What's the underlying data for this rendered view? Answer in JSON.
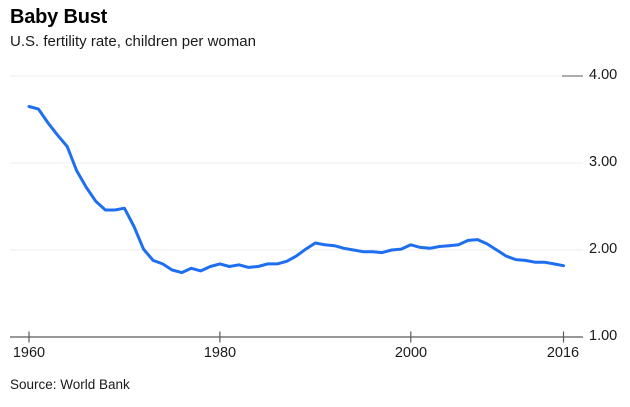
{
  "header": {
    "title": "Baby Bust",
    "subtitle": "U.S. fertility rate, children per woman"
  },
  "footer": {
    "source": "Source: World Bank"
  },
  "colors": {
    "line": "#1e6ef0",
    "grid": "#ececec",
    "axis": "#5a5a5a",
    "text": "#1a1a1a"
  },
  "chart_data": {
    "type": "line",
    "title": "Baby Bust",
    "subtitle": "U.S. fertility rate, children per woman",
    "source": "Source: World Bank",
    "series_name": "U.S. fertility rate, children per woman",
    "x": [
      1960,
      1961,
      1962,
      1963,
      1964,
      1965,
      1966,
      1967,
      1968,
      1969,
      1970,
      1971,
      1972,
      1973,
      1974,
      1975,
      1976,
      1977,
      1978,
      1979,
      1980,
      1981,
      1982,
      1983,
      1984,
      1985,
      1986,
      1987,
      1988,
      1989,
      1990,
      1991,
      1992,
      1993,
      1994,
      1995,
      1996,
      1997,
      1998,
      1999,
      2000,
      2001,
      2002,
      2003,
      2004,
      2005,
      2006,
      2007,
      2008,
      2009,
      2010,
      2011,
      2012,
      2013,
      2014,
      2015,
      2016
    ],
    "values": [
      3.65,
      3.62,
      3.46,
      3.32,
      3.19,
      2.91,
      2.72,
      2.56,
      2.46,
      2.46,
      2.48,
      2.27,
      2.01,
      1.88,
      1.84,
      1.77,
      1.74,
      1.79,
      1.76,
      1.81,
      1.84,
      1.81,
      1.83,
      1.8,
      1.81,
      1.84,
      1.84,
      1.87,
      1.93,
      2.01,
      2.08,
      2.06,
      2.05,
      2.02,
      2.0,
      1.98,
      1.98,
      1.97,
      2.0,
      2.01,
      2.06,
      2.03,
      2.02,
      2.04,
      2.05,
      2.06,
      2.11,
      2.12,
      2.07,
      2.0,
      1.93,
      1.89,
      1.88,
      1.86,
      1.86,
      1.84,
      1.82
    ],
    "xlim": [
      1960,
      2016
    ],
    "ylim": [
      1.0,
      4.0
    ],
    "y_ticks": [
      4.0,
      3.0,
      2.0,
      1.0
    ],
    "y_tick_labels": [
      "4.00",
      "3.00",
      "2.00",
      "1.00"
    ],
    "x_ticks": [
      1960,
      1980,
      2000,
      2016
    ],
    "x_tick_labels": [
      "1960",
      "1980",
      "2000",
      "2016"
    ],
    "grid": "horizontal-light",
    "legend": "none",
    "y_axis_side": "right"
  }
}
